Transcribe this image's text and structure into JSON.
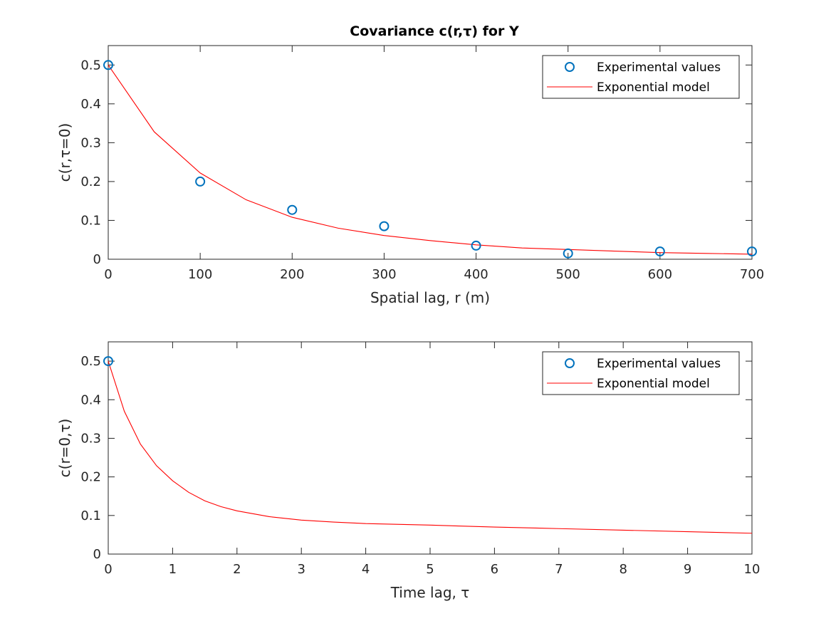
{
  "figure_title": "Covariance c(r,τ) for Y",
  "chart_data": [
    {
      "type": "line",
      "title": "Covariance c(r,τ) for Y",
      "xlabel": "Spatial lag, r (m)",
      "ylabel": "c(r,τ=0)",
      "xlim": [
        0,
        700
      ],
      "ylim": [
        0,
        0.55
      ],
      "xticks": [
        0,
        100,
        200,
        300,
        400,
        500,
        600,
        700
      ],
      "xtick_labels": [
        "0",
        "100",
        "200",
        "300",
        "400",
        "500",
        "600",
        "700"
      ],
      "yticks": [
        0,
        0.1,
        0.2,
        0.3,
        0.4,
        0.5
      ],
      "ytick_labels": [
        "0",
        "0.1",
        "0.2",
        "0.3",
        "0.4",
        "0.5"
      ],
      "grid": false,
      "legend_position": "top-right",
      "series": [
        {
          "name": "Experimental values",
          "kind": "scatter",
          "marker": "circle",
          "color": "#0072bd",
          "x": [
            0,
            100,
            200,
            300,
            400,
            500,
            600,
            700
          ],
          "y": [
            0.5,
            0.2,
            0.127,
            0.085,
            0.035,
            0.015,
            0.02,
            0.02
          ]
        },
        {
          "name": "Exponential model",
          "kind": "line",
          "color": "#ff0000",
          "x": [
            0,
            50,
            100,
            150,
            200,
            250,
            300,
            350,
            400,
            450,
            500,
            550,
            600,
            650,
            700
          ],
          "y": [
            0.5,
            0.328,
            0.222,
            0.153,
            0.108,
            0.08,
            0.061,
            0.048,
            0.037,
            0.029,
            0.025,
            0.021,
            0.017,
            0.015,
            0.013
          ]
        }
      ]
    },
    {
      "type": "line",
      "title": "",
      "xlabel": "Time lag, τ",
      "ylabel": "c(r=0,τ)",
      "xlim": [
        0,
        10
      ],
      "ylim": [
        0,
        0.55
      ],
      "xticks": [
        0,
        1,
        2,
        3,
        4,
        5,
        6,
        7,
        8,
        9,
        10
      ],
      "xtick_labels": [
        "0",
        "1",
        "2",
        "3",
        "4",
        "5",
        "6",
        "7",
        "8",
        "9",
        "10"
      ],
      "yticks": [
        0,
        0.1,
        0.2,
        0.3,
        0.4,
        0.5
      ],
      "ytick_labels": [
        "0",
        "0.1",
        "0.2",
        "0.3",
        "0.4",
        "0.5"
      ],
      "grid": false,
      "legend_position": "top-right",
      "series": [
        {
          "name": "Experimental values",
          "kind": "scatter",
          "marker": "circle",
          "color": "#0072bd",
          "x": [
            0
          ],
          "y": [
            0.5
          ]
        },
        {
          "name": "Exponential model",
          "kind": "line",
          "color": "#ff0000",
          "x": [
            0,
            0.25,
            0.5,
            0.75,
            1,
            1.25,
            1.5,
            1.75,
            2,
            2.5,
            3,
            3.5,
            4,
            5,
            6,
            7,
            8,
            9,
            10
          ],
          "y": [
            0.5,
            0.37,
            0.285,
            0.229,
            0.19,
            0.16,
            0.138,
            0.123,
            0.112,
            0.097,
            0.088,
            0.083,
            0.079,
            0.075,
            0.07,
            0.066,
            0.062,
            0.058,
            0.054
          ]
        }
      ]
    }
  ]
}
